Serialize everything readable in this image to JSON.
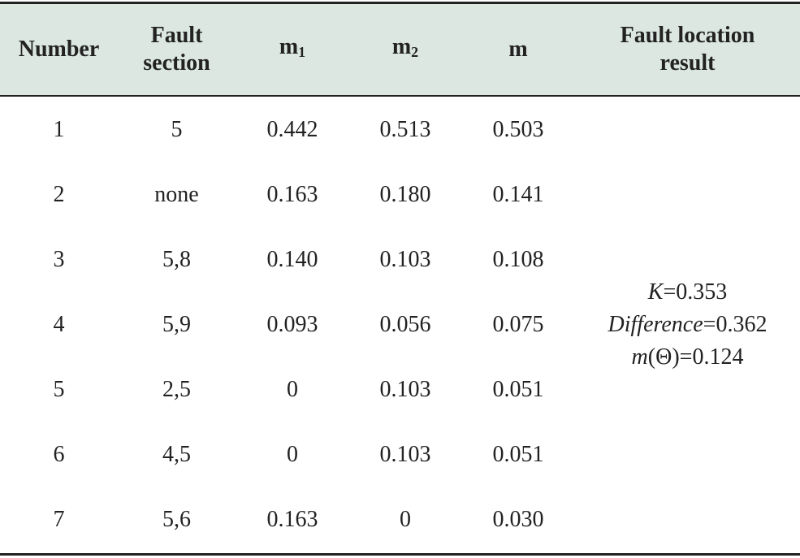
{
  "table": {
    "header": [
      {
        "lines": [
          "Number"
        ]
      },
      {
        "lines": [
          "Fault",
          "section"
        ]
      },
      {
        "text": "m",
        "sub": "1"
      },
      {
        "text": "m",
        "sub": "2"
      },
      {
        "lines": [
          "m"
        ]
      },
      {
        "lines": [
          "Fault location",
          "result"
        ]
      }
    ],
    "rows": [
      [
        "1",
        "5",
        "0.442",
        "0.513",
        "0.503"
      ],
      [
        "2",
        "none",
        "0.163",
        "0.180",
        "0.141"
      ],
      [
        "3",
        "5,8",
        "0.140",
        "0.103",
        "0.108"
      ],
      [
        "4",
        "5,9",
        "0.093",
        "0.056",
        "0.075"
      ],
      [
        "5",
        "2,5",
        "0",
        "0.103",
        "0.051"
      ],
      [
        "6",
        "4,5",
        "0",
        "0.103",
        "0.051"
      ],
      [
        "7",
        "5,6",
        "0.163",
        "0",
        "0.030"
      ]
    ],
    "result": [
      {
        "italic": "K",
        "text": "=0.353"
      },
      {
        "italic": "Difference",
        "text": "=0.362"
      },
      {
        "italic": "m",
        "text": "(Θ)=0.124"
      }
    ]
  }
}
